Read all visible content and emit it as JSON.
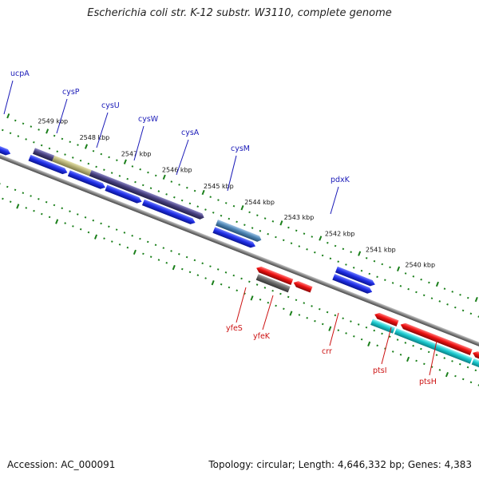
{
  "title": "Escherichia coli str. K-12 substr. W3110, complete genome",
  "footer": {
    "accession": "Accession: AC_000091",
    "summary": "Topology: circular; Length: 4,646,332 bp; Genes: 4,383"
  },
  "colors": {
    "top_label": "#1a1ab8",
    "bottom_label": "#cc1111",
    "tick": "#1a7f1a",
    "backbone": "#808080",
    "blue_gene": "#1f2ee6",
    "red_gene": "#ee1111",
    "cyan_gene": "#19c6cc",
    "purple_gene": "#474080",
    "olive_gene": "#b7b277",
    "steel_gene": "#4d84b3",
    "gray_gene": "#666666"
  },
  "kbp_ticks": [
    "2549 kbp",
    "2548 kbp",
    "2547 kbp",
    "2546 kbp",
    "2545 kbp",
    "2544 kbp",
    "2543 kbp",
    "2542 kbp",
    "2541 kbp",
    "2540 kbp"
  ],
  "top_labels": [
    "ucpA",
    "cysP",
    "cysU",
    "cysW",
    "cysA",
    "cysM",
    "pdxK"
  ],
  "bottom_labels": [
    "yfeS",
    "yfeK",
    "crr",
    "ptsI",
    "ptsH"
  ]
}
